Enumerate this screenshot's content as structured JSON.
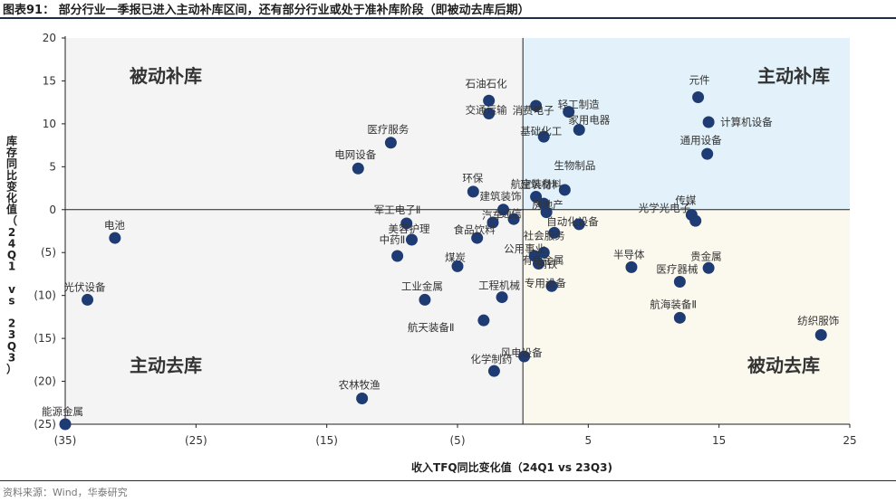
{
  "figure_title": "图表91：  部分行业一季报已进入主动补库区间，还有部分行业或处于准补库阶段（即被动去库后期）",
  "source": "资料来源：Wind，华泰研究",
  "colors": {
    "point": "#1f3b73",
    "q1_fill": "#e3f2fa",
    "q4_fill": "#fbf8ee",
    "q2_fill": "#f4f4f4",
    "q3_fill": "#f4f4f4",
    "axis": "#1f1f1f",
    "divider": "#222222",
    "quadrant_text": "#333333"
  },
  "chart_data": {
    "type": "scatter",
    "xlabel": "收入TFQ同比变化值（24Q1 vs 23Q3)",
    "ylabel": "库存同比变化值（24Q1 vs 23Q3）",
    "xlim": [
      -35,
      25
    ],
    "ylim": [
      -25,
      20
    ],
    "x_ticks": [
      -35,
      -25,
      -15,
      -5,
      5,
      15,
      25
    ],
    "x_tick_labels": [
      "(35)",
      "(25)",
      "(15)",
      "(5)",
      "5",
      "15",
      "25"
    ],
    "y_ticks": [
      20,
      15,
      10,
      5,
      0,
      -5,
      -10,
      -15,
      -20,
      -25
    ],
    "y_tick_labels": [
      "20",
      "15",
      "10",
      "5",
      "0",
      "(5)",
      "(10)",
      "(15)",
      "(20)",
      "(25)"
    ],
    "quadrant_labels": {
      "top_left": "被动补库",
      "top_right": "主动补库",
      "bottom_left": "主动去库",
      "bottom_right": "被动去库"
    },
    "points": [
      {
        "label": "元件",
        "x": 13.4,
        "y": 13.1
      },
      {
        "label": "计算机设备",
        "x": 14.2,
        "y": 10.2
      },
      {
        "label": "通用设备",
        "x": 14.1,
        "y": 6.5
      },
      {
        "label": "传媒",
        "x": 12.9,
        "y": -0.6
      },
      {
        "label": "光学光电子",
        "x": 13.2,
        "y": -1.3
      },
      {
        "label": "石油石化",
        "x": -2.6,
        "y": 12.7
      },
      {
        "label": "交通运输",
        "x": -2.6,
        "y": 11.2
      },
      {
        "label": "消费电子",
        "x": 1.0,
        "y": 12.1
      },
      {
        "label": "轻工制造",
        "x": 3.5,
        "y": 11.4
      },
      {
        "label": "家用电器",
        "x": 4.3,
        "y": 9.3
      },
      {
        "label": "基础化工",
        "x": 1.6,
        "y": 8.5
      },
      {
        "label": "医疗服务",
        "x": -10.1,
        "y": 7.8
      },
      {
        "label": "电网设备",
        "x": -12.6,
        "y": 4.8
      },
      {
        "label": "环保",
        "x": -3.8,
        "y": 2.1
      },
      {
        "label": "生物制品",
        "x": 3.2,
        "y": 2.3
      },
      {
        "label": "航空装备Ⅱ",
        "x": 1.0,
        "y": 1.5
      },
      {
        "label": "建筑材料",
        "x": 1.6,
        "y": 0.7
      },
      {
        "label": "建筑装饰",
        "x": -1.5,
        "y": 0.0
      },
      {
        "label": "房地产",
        "x": 1.8,
        "y": -0.3
      },
      {
        "label": "通信",
        "x": -0.7,
        "y": -1.1
      },
      {
        "label": "汽车",
        "x": -2.3,
        "y": -1.5
      },
      {
        "label": "自动化设备",
        "x": 4.3,
        "y": -1.7
      },
      {
        "label": "军工电子Ⅱ",
        "x": -8.9,
        "y": -1.6
      },
      {
        "label": "美容护理",
        "x": -8.5,
        "y": -3.5
      },
      {
        "label": "食品饮料",
        "x": -3.5,
        "y": -3.3
      },
      {
        "label": "中药Ⅱ",
        "x": -9.6,
        "y": -5.4
      },
      {
        "label": "社会服务",
        "x": 2.4,
        "y": -2.7
      },
      {
        "label": "钢铁",
        "x": 1.6,
        "y": -5.0
      },
      {
        "label": "公用事业",
        "x": 0.9,
        "y": -5.4
      },
      {
        "label": "煤炭",
        "x": -5.0,
        "y": -6.6
      },
      {
        "label": "有色金属",
        "x": 1.2,
        "y": -6.3
      },
      {
        "label": "半导体",
        "x": 8.3,
        "y": -6.7
      },
      {
        "label": "贵金属",
        "x": 14.2,
        "y": -6.8
      },
      {
        "label": "医疗器械",
        "x": 12.0,
        "y": -8.4
      },
      {
        "label": "工业金属",
        "x": -7.5,
        "y": -10.5
      },
      {
        "label": "专用设备",
        "x": 2.2,
        "y": -8.9
      },
      {
        "label": "工程机械",
        "x": -1.6,
        "y": -10.2
      },
      {
        "label": "航天装备Ⅱ",
        "x": -3.0,
        "y": -12.9
      },
      {
        "label": "航海装备Ⅱ",
        "x": 12.0,
        "y": -12.6
      },
      {
        "label": "纺织服饰",
        "x": 22.8,
        "y": -14.6
      },
      {
        "label": "电池",
        "x": -31.2,
        "y": -3.3
      },
      {
        "label": "光伏设备",
        "x": -33.3,
        "y": -10.5
      },
      {
        "label": "风电设备",
        "x": 0.1,
        "y": -17.1
      },
      {
        "label": "化学制药",
        "x": -2.2,
        "y": -18.8
      },
      {
        "label": "农林牧渔",
        "x": -12.3,
        "y": -22.0
      },
      {
        "label": "能源金属",
        "x": -35.0,
        "y": -25.0
      }
    ]
  }
}
